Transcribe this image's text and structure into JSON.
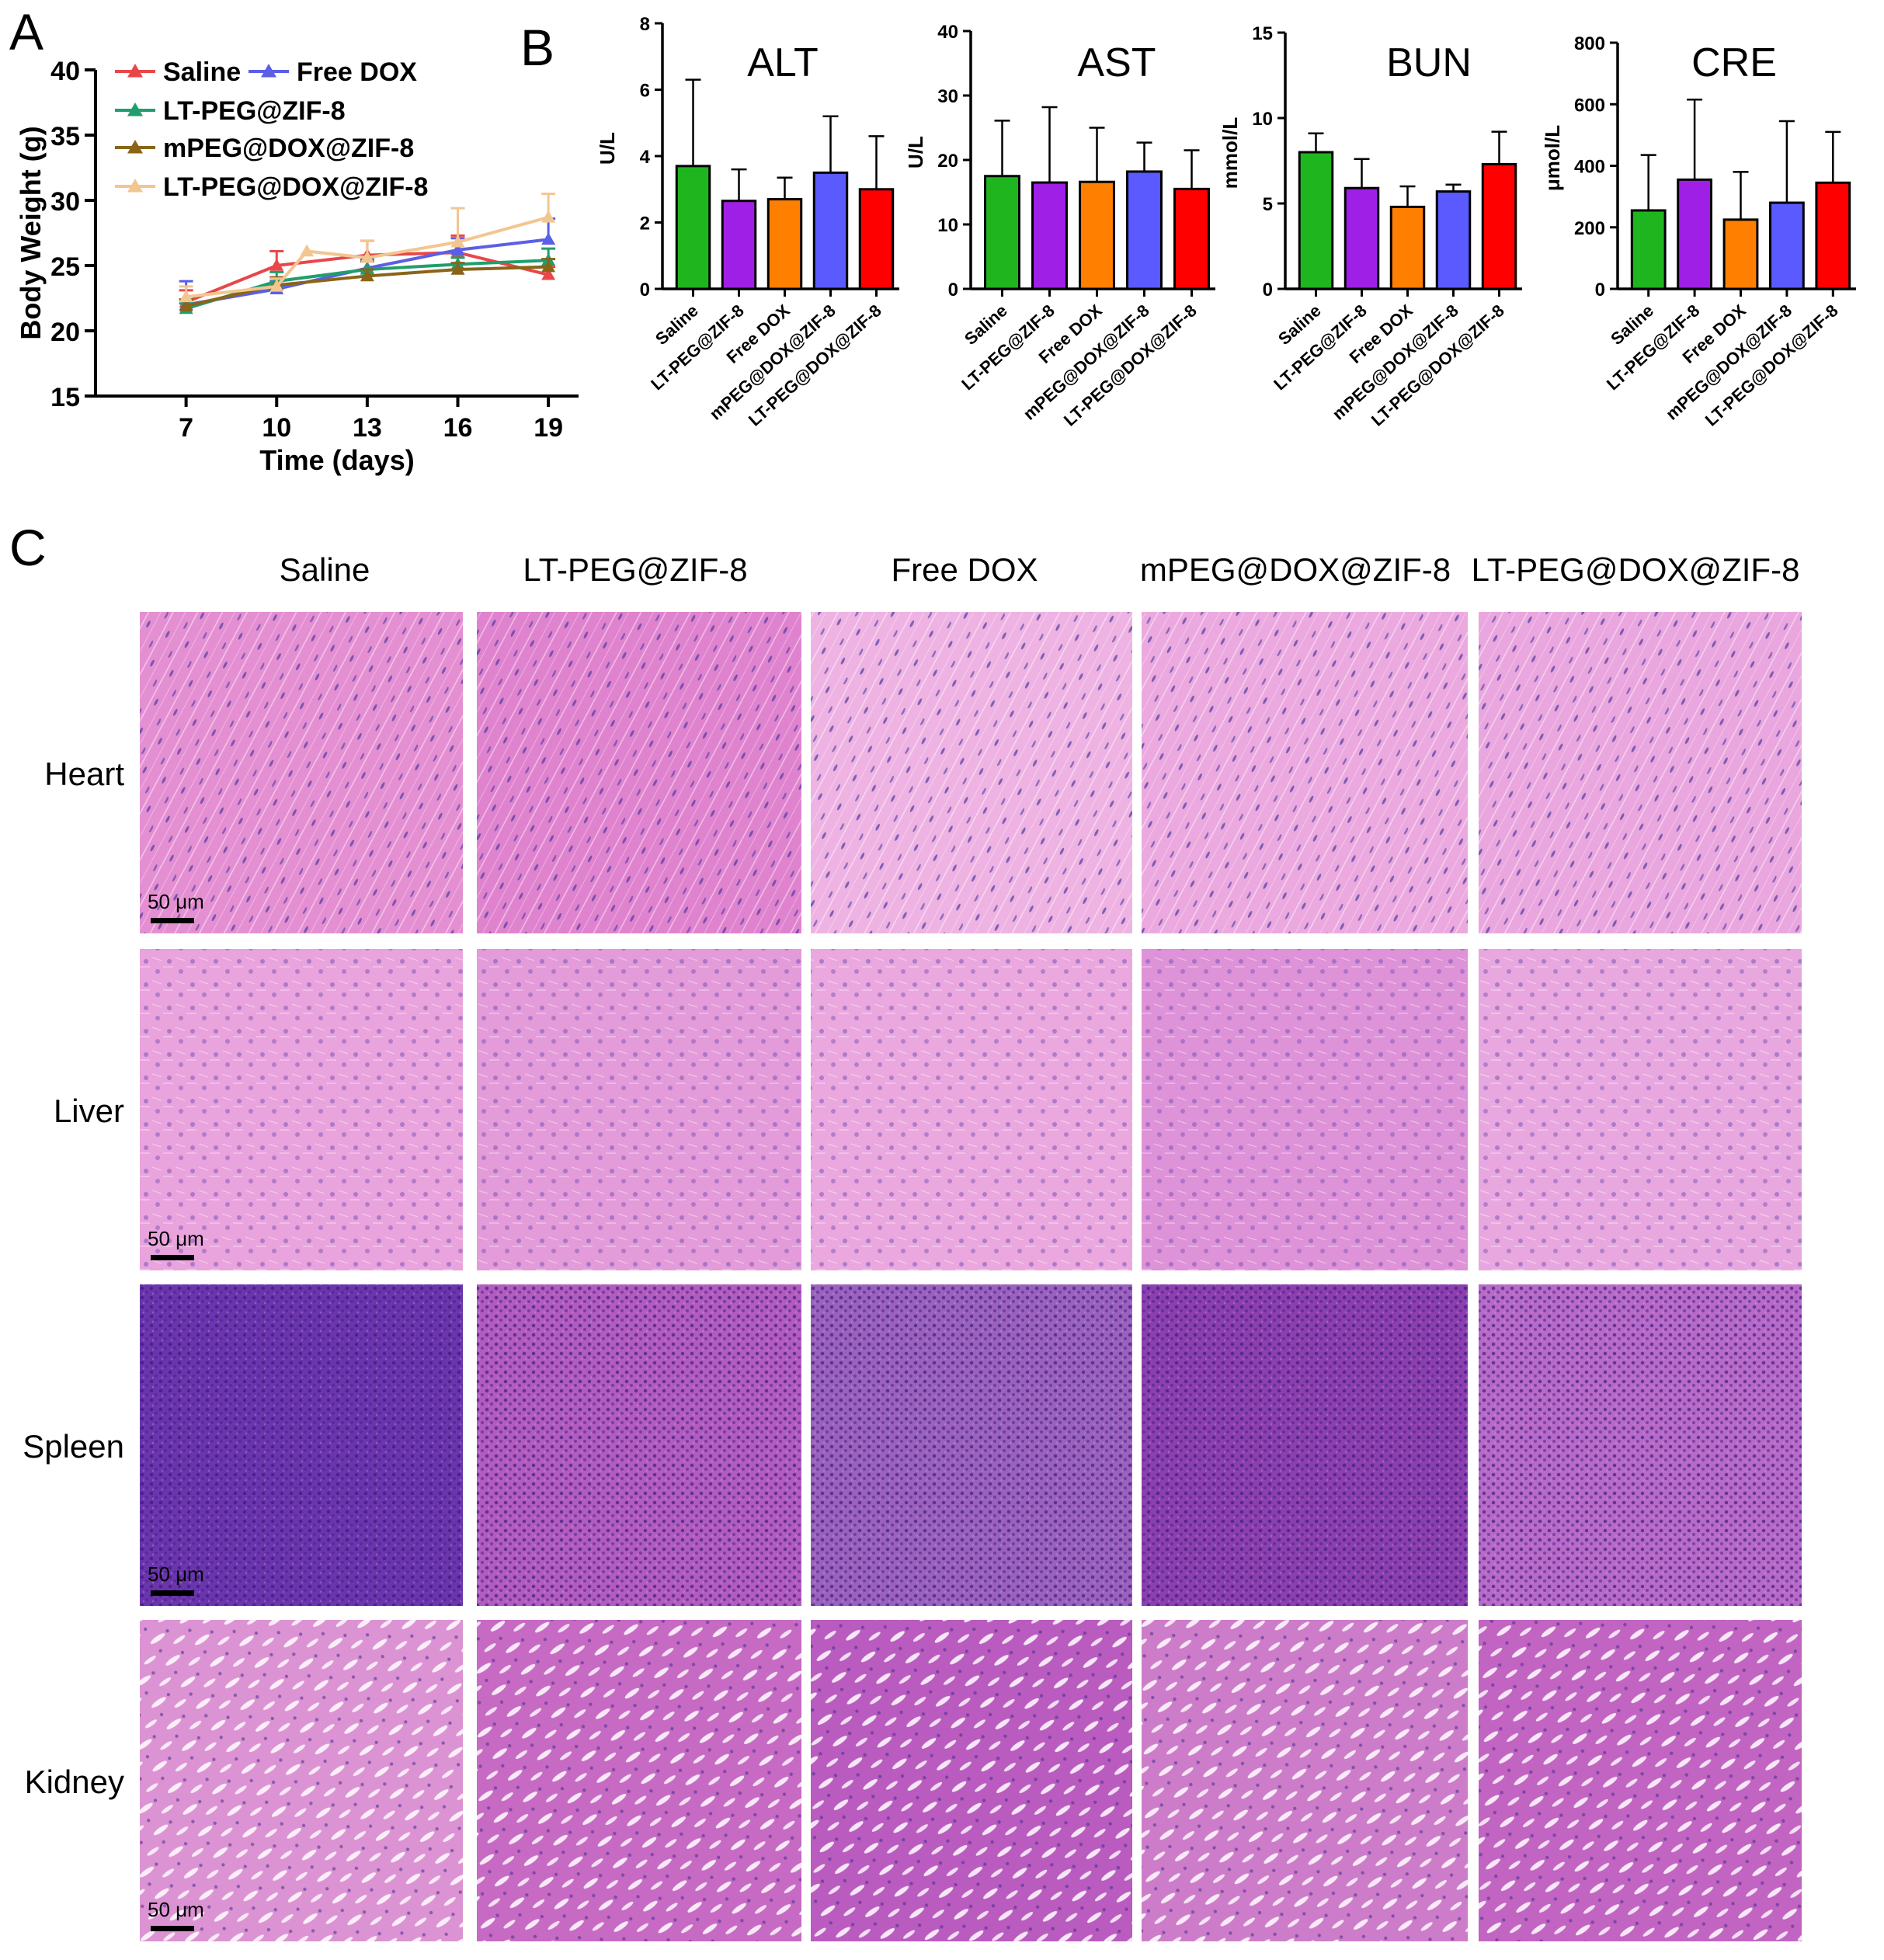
{
  "panels": {
    "A": "A",
    "B": "B",
    "C": "C"
  },
  "chart_data": [
    {
      "id": "body-weight",
      "type": "line",
      "title": "",
      "xlabel": "Time (days)",
      "ylabel": "Body Weight (g)",
      "xlim": [
        4,
        20
      ],
      "ylim": [
        15,
        40
      ],
      "xticks": [
        7,
        10,
        13,
        16,
        19
      ],
      "yticks": [
        15,
        20,
        25,
        30,
        35,
        40
      ],
      "legend_position": "top-left",
      "series": [
        {
          "name": "Saline",
          "color": "#e8474a",
          "x": [
            7,
            10,
            13,
            16,
            19
          ],
          "y": [
            22.2,
            25.0,
            25.8,
            26.0,
            24.3
          ],
          "err": [
            0.9,
            1.1,
            1.1,
            1.3,
            0.6
          ]
        },
        {
          "name": "Free DOX",
          "color": "#5b5fe6",
          "x": [
            7,
            10,
            13,
            16,
            19
          ],
          "y": [
            22.0,
            23.2,
            24.8,
            26.2,
            27.0
          ],
          "err": [
            1.8,
            0.6,
            0.7,
            0.9,
            1.6
          ]
        },
        {
          "name": "LT-PEG@ZIF-8",
          "color": "#1f9e6e",
          "x": [
            7,
            10,
            13,
            16,
            19
          ],
          "y": [
            21.7,
            23.8,
            24.7,
            25.1,
            25.4
          ],
          "err": [
            0.4,
            0.7,
            0.6,
            0.5,
            0.9
          ]
        },
        {
          "name": "mPEG@DOX@ZIF-8",
          "color": "#8a6418",
          "x": [
            7,
            10,
            13,
            16,
            19
          ],
          "y": [
            21.9,
            23.5,
            24.2,
            24.7,
            24.9
          ],
          "err": [
            0.5,
            0.6,
            0.5,
            0.5,
            0.6
          ]
        },
        {
          "name": "LT-PEG@DOX@ZIF-8",
          "color": "#f2c690",
          "x": [
            7,
            10,
            11,
            13,
            16,
            19
          ],
          "y": [
            22.6,
            23.4,
            26.1,
            25.6,
            26.8,
            28.7
          ],
          "err": [
            0.8,
            0.6,
            0,
            1.3,
            2.6,
            1.8
          ]
        }
      ]
    },
    {
      "id": "alt",
      "type": "bar",
      "title": "ALT",
      "ylabel": "U/L",
      "ylim": [
        0,
        8
      ],
      "yticks": [
        0,
        2,
        4,
        6,
        8
      ],
      "categories": [
        "Saline",
        "LT-PEG@ZIF-8",
        "Free DOX",
        "mPEG@DOX@ZIF-8",
        "LT-PEG@DOX@ZIF-8"
      ],
      "values": [
        3.7,
        2.65,
        2.7,
        3.5,
        3.0
      ],
      "errors": [
        2.6,
        0.95,
        0.65,
        1.7,
        1.6
      ],
      "colors": [
        "#1fb51f",
        "#a01fe6",
        "#ff7f00",
        "#5a5aff",
        "#ff0000"
      ]
    },
    {
      "id": "ast",
      "type": "bar",
      "title": "AST",
      "ylabel": "U/L",
      "ylim": [
        0,
        40
      ],
      "yticks": [
        0,
        10,
        20,
        30,
        40
      ],
      "categories": [
        "Saline",
        "LT-PEG@ZIF-8",
        "Free DOX",
        "mPEG@DOX@ZIF-8",
        "LT-PEG@DOX@ZIF-8"
      ],
      "values": [
        17.5,
        16.5,
        16.6,
        18.2,
        15.5
      ],
      "errors": [
        8.6,
        11.7,
        8.4,
        4.5,
        6.0
      ],
      "colors": [
        "#1fb51f",
        "#a01fe6",
        "#ff7f00",
        "#5a5aff",
        "#ff0000"
      ]
    },
    {
      "id": "bun",
      "type": "bar",
      "title": "BUN",
      "ylabel": "mmol/L",
      "ylim": [
        0,
        15
      ],
      "yticks": [
        0,
        5,
        10,
        15
      ],
      "categories": [
        "Saline",
        "LT-PEG@ZIF-8",
        "Free DOX",
        "mPEG@DOX@ZIF-8",
        "LT-PEG@DOX@ZIF-8"
      ],
      "values": [
        8.0,
        5.9,
        4.8,
        5.7,
        7.3
      ],
      "errors": [
        1.1,
        1.7,
        1.2,
        0.4,
        1.9
      ],
      "colors": [
        "#1fb51f",
        "#a01fe6",
        "#ff7f00",
        "#5a5aff",
        "#ff0000"
      ]
    },
    {
      "id": "cre",
      "type": "bar",
      "title": "CRE",
      "ylabel": "μmol/L",
      "ylim": [
        0,
        800
      ],
      "yticks": [
        0,
        200,
        400,
        600,
        800
      ],
      "categories": [
        "Saline",
        "LT-PEG@ZIF-8",
        "Free DOX",
        "mPEG@DOX@ZIF-8",
        "LT-PEG@DOX@ZIF-8"
      ],
      "values": [
        255,
        355,
        225,
        280,
        345
      ],
      "errors": [
        180,
        260,
        155,
        265,
        165
      ],
      "colors": [
        "#1fb51f",
        "#a01fe6",
        "#ff7f00",
        "#5a5aff",
        "#ff0000"
      ]
    }
  ],
  "histology": {
    "columns": [
      "Saline",
      "LT-PEG@ZIF-8",
      "Free DOX",
      "mPEG@DOX@ZIF-8",
      "LT-PEG@DOX@ZIF-8"
    ],
    "rows": [
      "Heart",
      "Liver",
      "Spleen",
      "Kidney"
    ],
    "scale_label": "50 μm",
    "tints": {
      "Heart": [
        "#e58fd3",
        "#e083cf",
        "#eeb3e3",
        "#eba9df",
        "#eaa6de"
      ],
      "Liver": [
        "#e9a3dd",
        "#e39bd9",
        "#eaa8df",
        "#de92d8",
        "#e8a8df"
      ],
      "Spleen": [
        "#6a35ad",
        "#b25cbf",
        "#9a62bd",
        "#8c3fae",
        "#b76ac7"
      ],
      "Kidney": [
        "#dc93d3",
        "#c66ac4",
        "#b95bbf",
        "#cd7cc9",
        "#c164c2"
      ]
    },
    "texture_colors": {
      "Heart": "#6a4aa8",
      "Liver": "#8a5cb8",
      "Spleen": "#3c1a7a",
      "Kidney": "#ffffff"
    }
  }
}
